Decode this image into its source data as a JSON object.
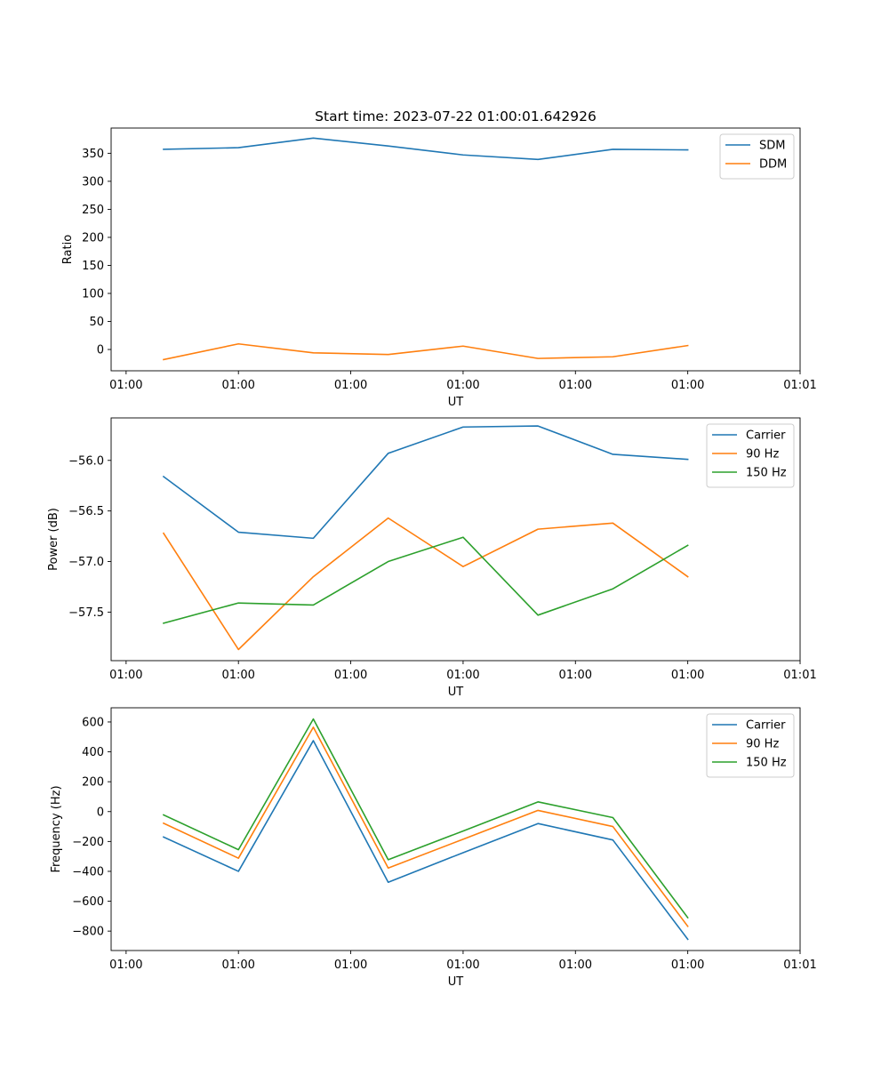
{
  "chart_data": [
    {
      "type": "line",
      "title": "Start time: 2023-07-22 01:00:01.642926",
      "xlabel": "UT",
      "ylabel": "Ratio",
      "x_tick_labels": [
        "01:00",
        "01:00",
        "01:00",
        "01:00",
        "01:00",
        "01:00",
        "01:01"
      ],
      "y_ticks": [
        0,
        50,
        100,
        150,
        200,
        250,
        300,
        350
      ],
      "ylim": [
        -38,
        395
      ],
      "x": [
        1,
        2,
        3,
        4,
        5,
        6,
        7,
        8
      ],
      "xlim": [
        0.3,
        9.5
      ],
      "x_tick_positions": [
        0.5,
        2,
        3.5,
        5,
        6.5,
        8,
        9.5
      ],
      "legend_position": "top-right",
      "series": [
        {
          "name": "SDM",
          "color": "#1f77b4",
          "values": [
            357,
            360,
            377,
            363,
            347,
            339,
            357,
            356
          ]
        },
        {
          "name": "DDM",
          "color": "#ff7f0e",
          "values": [
            -18,
            10,
            -6,
            -9,
            6,
            -16,
            -13,
            7
          ]
        }
      ]
    },
    {
      "type": "line",
      "title": "",
      "xlabel": "UT",
      "ylabel": "Power (dB)",
      "x_tick_labels": [
        "01:00",
        "01:00",
        "01:00",
        "01:00",
        "01:00",
        "01:00",
        "01:01"
      ],
      "y_ticks": [
        -57.5,
        -57.0,
        -56.5,
        -56.0
      ],
      "y_tick_labels": [
        "−57.5",
        "−57.0",
        "−56.5",
        "−56.0"
      ],
      "ylim": [
        -57.98,
        -55.58
      ],
      "x": [
        1,
        2,
        3,
        4,
        5,
        6,
        7,
        8
      ],
      "xlim": [
        0.3,
        9.5
      ],
      "x_tick_positions": [
        0.5,
        2,
        3.5,
        5,
        6.5,
        8,
        9.5
      ],
      "legend_position": "top-right",
      "series": [
        {
          "name": "Carrier",
          "color": "#1f77b4",
          "values": [
            -56.16,
            -56.71,
            -56.77,
            -55.93,
            -55.67,
            -55.66,
            -55.94,
            -55.99
          ]
        },
        {
          "name": "90 Hz",
          "color": "#ff7f0e",
          "values": [
            -56.72,
            -57.87,
            -57.15,
            -56.57,
            -57.05,
            -56.68,
            -56.62,
            -57.15
          ]
        },
        {
          "name": "150 Hz",
          "color": "#2ca02c",
          "values": [
            -57.61,
            -57.41,
            -57.43,
            -57.0,
            -56.76,
            -57.53,
            -57.27,
            -56.84
          ]
        }
      ]
    },
    {
      "type": "line",
      "title": "",
      "xlabel": "UT",
      "ylabel": "Frequency (Hz)",
      "x_tick_labels": [
        "01:00",
        "01:00",
        "01:00",
        "01:00",
        "01:00",
        "01:00",
        "01:01"
      ],
      "y_ticks": [
        -800,
        -600,
        -400,
        -200,
        0,
        200,
        400,
        600
      ],
      "y_tick_labels": [
        "−800",
        "−600",
        "−400",
        "−200",
        "0",
        "200",
        "400",
        "600"
      ],
      "ylim": [
        -930,
        695
      ],
      "x": [
        1,
        2,
        3,
        4,
        5,
        6,
        7,
        8
      ],
      "xlim": [
        0.3,
        9.5
      ],
      "x_tick_positions": [
        0.5,
        2,
        3.5,
        5,
        6.5,
        8,
        9.5
      ],
      "legend_position": "top-right",
      "series": [
        {
          "name": "Carrier",
          "color": "#1f77b4",
          "values": [
            -170,
            -400,
            475,
            -473,
            -275,
            -80,
            -190,
            -855
          ]
        },
        {
          "name": "90 Hz",
          "color": "#ff7f0e",
          "values": [
            -78,
            -312,
            565,
            -378,
            -185,
            8,
            -100,
            -768
          ]
        },
        {
          "name": "150 Hz",
          "color": "#2ca02c",
          "values": [
            -22,
            -255,
            620,
            -322,
            -130,
            65,
            -40,
            -710
          ]
        }
      ]
    }
  ]
}
